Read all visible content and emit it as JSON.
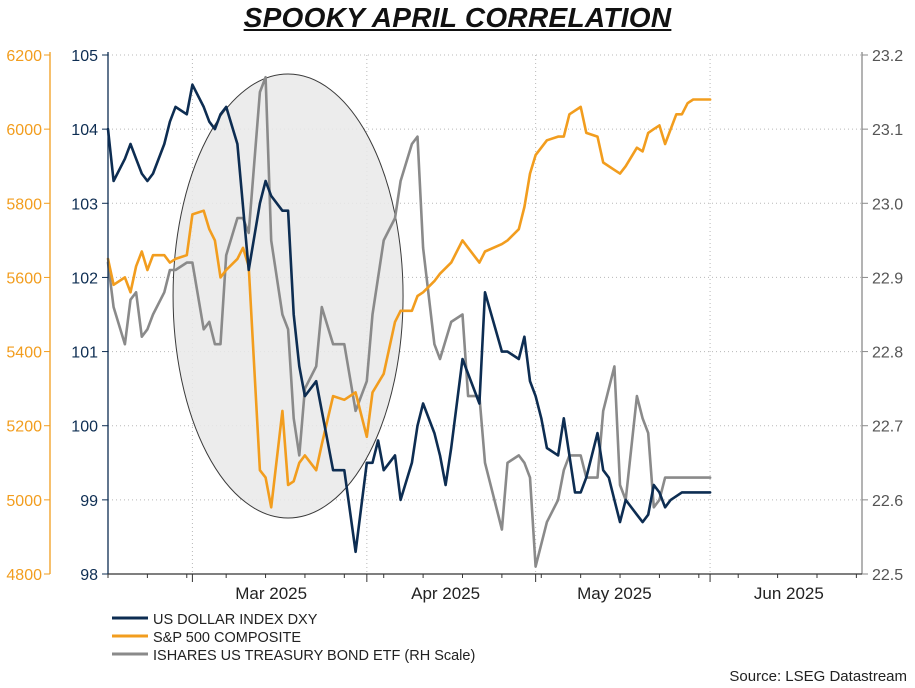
{
  "chart_data": {
    "type": "line",
    "title": "SPOOKY APRIL CORRELATION",
    "source": "Source: LSEG Datastream",
    "grid": true,
    "legend_position": "bottom-left",
    "highlight": "ellipse around April 2025 selloff",
    "colors": {
      "dxy": "#0d2d52",
      "spx": "#f29d1e",
      "etf": "#8a8a8a",
      "left_axis": "#f29d1e",
      "mid_axis": "#0d2d52",
      "right_axis": "#8a8a8a"
    },
    "x_axis": {
      "labels": [
        "Mar 2025",
        "Apr 2025",
        "May 2025",
        "Jun 2025"
      ],
      "range": [
        "2025-02-14",
        "2025-06-28"
      ]
    },
    "axes": {
      "spx": {
        "min": 4800,
        "max": 6200,
        "ticks": [
          4800,
          5000,
          5200,
          5400,
          5600,
          5800,
          6000,
          6200
        ]
      },
      "dxy": {
        "min": 98,
        "max": 105,
        "ticks": [
          98,
          99,
          100,
          101,
          102,
          103,
          104,
          105
        ]
      },
      "etf": {
        "min": 22.5,
        "max": 23.2,
        "ticks": [
          "22.5",
          "22.6",
          "22.7",
          "22.8",
          "22.9",
          "23.0",
          "23.1",
          "23.2"
        ]
      }
    },
    "series": [
      {
        "name": "US DOLLAR INDEX DXY",
        "key": "dxy",
        "dates": [
          "2025-02-14",
          "2025-02-15",
          "2025-02-17",
          "2025-02-18",
          "2025-02-19",
          "2025-02-20",
          "2025-02-21",
          "2025-02-22",
          "2025-02-24",
          "2025-02-25",
          "2025-02-26",
          "2025-02-28",
          "2025-03-01",
          "2025-03-03",
          "2025-03-04",
          "2025-03-05",
          "2025-03-06",
          "2025-03-07",
          "2025-03-09",
          "2025-03-11",
          "2025-03-13",
          "2025-03-14",
          "2025-03-15",
          "2025-03-17",
          "2025-03-18",
          "2025-03-19",
          "2025-03-20",
          "2025-03-21",
          "2025-03-23",
          "2025-03-24",
          "2025-03-26",
          "2025-03-28",
          "2025-03-30",
          "2025-04-01",
          "2025-04-02",
          "2025-04-03",
          "2025-04-04",
          "2025-04-06",
          "2025-04-07",
          "2025-04-09",
          "2025-04-10",
          "2025-04-11",
          "2025-04-13",
          "2025-04-14",
          "2025-04-15",
          "2025-04-16",
          "2025-04-18",
          "2025-04-21",
          "2025-04-22",
          "2025-04-25",
          "2025-04-26",
          "2025-04-28",
          "2025-04-29",
          "2025-04-30",
          "2025-05-01",
          "2025-05-02",
          "2025-05-03",
          "2025-05-05",
          "2025-05-06",
          "2025-05-08",
          "2025-05-09",
          "2025-05-10",
          "2025-05-12",
          "2025-05-13",
          "2025-05-14",
          "2025-05-15",
          "2025-05-16",
          "2025-05-17",
          "2025-05-19",
          "2025-05-20",
          "2025-05-21",
          "2025-05-22",
          "2025-05-23",
          "2025-05-24",
          "2025-05-25",
          "2025-05-27",
          "2025-05-28",
          "2025-05-29",
          "2025-05-30",
          "2025-05-31",
          "2025-06-01"
        ],
        "values": [
          104.0,
          103.3,
          103.6,
          103.8,
          103.6,
          103.4,
          103.3,
          103.4,
          103.8,
          104.1,
          104.3,
          104.2,
          104.6,
          104.3,
          104.1,
          104.0,
          104.2,
          104.3,
          103.8,
          102.1,
          103.0,
          103.3,
          103.1,
          102.9,
          102.9,
          101.5,
          100.8,
          100.4,
          100.6,
          100.2,
          99.4,
          99.4,
          98.3,
          99.5,
          99.5,
          99.8,
          99.4,
          99.6,
          99.0,
          99.5,
          100.0,
          100.3,
          99.9,
          99.6,
          99.2,
          99.7,
          100.9,
          100.3,
          101.8,
          101.0,
          101.0,
          100.9,
          101.2,
          100.6,
          100.4,
          100.1,
          99.7,
          99.6,
          100.1,
          99.1,
          99.1,
          99.3,
          99.9,
          99.4,
          99.3,
          99.0,
          98.7,
          99.0,
          98.8,
          98.7,
          98.8,
          99.2,
          99.1,
          98.9,
          99.0,
          99.1,
          99.1,
          99.1,
          99.1,
          99.1,
          99.1
        ]
      },
      {
        "name": "S&P 500 COMPOSITE",
        "key": "spx",
        "dates": [
          "2025-02-14",
          "2025-02-15",
          "2025-02-17",
          "2025-02-18",
          "2025-02-19",
          "2025-02-20",
          "2025-02-21",
          "2025-02-22",
          "2025-02-24",
          "2025-02-25",
          "2025-02-26",
          "2025-02-28",
          "2025-03-01",
          "2025-03-03",
          "2025-03-04",
          "2025-03-05",
          "2025-03-06",
          "2025-03-07",
          "2025-03-09",
          "2025-03-10",
          "2025-03-11",
          "2025-03-13",
          "2025-03-14",
          "2025-03-15",
          "2025-03-17",
          "2025-03-18",
          "2025-03-19",
          "2025-03-20",
          "2025-03-21",
          "2025-03-23",
          "2025-03-24",
          "2025-03-26",
          "2025-03-28",
          "2025-03-30",
          "2025-04-01",
          "2025-04-02",
          "2025-04-04",
          "2025-04-06",
          "2025-04-07",
          "2025-04-09",
          "2025-04-10",
          "2025-04-11",
          "2025-04-13",
          "2025-04-14",
          "2025-04-16",
          "2025-04-18",
          "2025-04-19",
          "2025-04-21",
          "2025-04-22",
          "2025-04-25",
          "2025-04-26",
          "2025-04-28",
          "2025-04-29",
          "2025-04-30",
          "2025-05-01",
          "2025-05-03",
          "2025-05-05",
          "2025-05-06",
          "2025-05-07",
          "2025-05-09",
          "2025-05-10",
          "2025-05-12",
          "2025-05-13",
          "2025-05-15",
          "2025-05-16",
          "2025-05-17",
          "2025-05-19",
          "2025-05-20",
          "2025-05-21",
          "2025-05-22",
          "2025-05-23",
          "2025-05-24",
          "2025-05-26",
          "2025-05-27",
          "2025-05-28",
          "2025-05-29",
          "2025-05-30",
          "2025-06-01"
        ],
        "values": [
          5650,
          5580,
          5600,
          5560,
          5630,
          5670,
          5620,
          5660,
          5660,
          5640,
          5650,
          5660,
          5770,
          5780,
          5730,
          5700,
          5600,
          5620,
          5650,
          5680,
          5630,
          5080,
          5060,
          4980,
          5240,
          5040,
          5050,
          5100,
          5120,
          5080,
          5150,
          5280,
          5270,
          5290,
          5170,
          5290,
          5340,
          5480,
          5510,
          5510,
          5550,
          5560,
          5590,
          5610,
          5640,
          5700,
          5680,
          5640,
          5670,
          5690,
          5700,
          5730,
          5790,
          5880,
          5930,
          5970,
          5980,
          5980,
          6040,
          6060,
          5990,
          5980,
          5910,
          5890,
          5880,
          5900,
          5950,
          5940,
          5990,
          6000,
          6010,
          5960,
          6040,
          6040,
          6070,
          6080,
          6080,
          6080
        ]
      },
      {
        "name": "ISHARES US TREASURY BOND ETF (RH Scale)",
        "key": "etf",
        "dates": [
          "2025-02-14",
          "2025-02-15",
          "2025-02-17",
          "2025-02-18",
          "2025-02-19",
          "2025-02-20",
          "2025-02-21",
          "2025-02-22",
          "2025-02-24",
          "2025-02-25",
          "2025-02-26",
          "2025-02-28",
          "2025-03-01",
          "2025-03-03",
          "2025-03-04",
          "2025-03-05",
          "2025-03-06",
          "2025-03-07",
          "2025-03-09",
          "2025-03-10",
          "2025-03-11",
          "2025-03-13",
          "2025-03-14",
          "2025-03-15",
          "2025-03-17",
          "2025-03-18",
          "2025-03-19",
          "2025-03-20",
          "2025-03-21",
          "2025-03-23",
          "2025-03-24",
          "2025-03-26",
          "2025-03-28",
          "2025-03-30",
          "2025-04-01",
          "2025-04-02",
          "2025-04-04",
          "2025-04-06",
          "2025-04-07",
          "2025-04-09",
          "2025-04-10",
          "2025-04-11",
          "2025-04-13",
          "2025-04-14",
          "2025-04-16",
          "2025-04-18",
          "2025-04-19",
          "2025-04-21",
          "2025-04-22",
          "2025-04-25",
          "2025-04-26",
          "2025-04-28",
          "2025-04-29",
          "2025-04-30",
          "2025-05-01",
          "2025-05-03",
          "2025-05-05",
          "2025-05-06",
          "2025-05-07",
          "2025-05-09",
          "2025-05-10",
          "2025-05-12",
          "2025-05-13",
          "2025-05-15",
          "2025-05-16",
          "2025-05-17",
          "2025-05-19",
          "2025-05-20",
          "2025-05-21",
          "2025-05-22",
          "2025-05-23",
          "2025-05-24",
          "2025-05-26",
          "2025-05-27",
          "2025-05-28",
          "2025-05-29",
          "2025-05-30",
          "2025-06-01"
        ],
        "values": [
          22.92,
          22.86,
          22.81,
          22.87,
          22.88,
          22.82,
          22.83,
          22.85,
          22.88,
          22.91,
          22.91,
          22.92,
          22.92,
          22.83,
          22.84,
          22.81,
          22.81,
          22.93,
          22.98,
          22.98,
          22.96,
          23.15,
          23.17,
          22.95,
          22.85,
          22.83,
          22.71,
          22.66,
          22.75,
          22.78,
          22.86,
          22.81,
          22.81,
          22.72,
          22.76,
          22.85,
          22.95,
          22.98,
          23.03,
          23.08,
          23.09,
          22.94,
          22.81,
          22.79,
          22.84,
          22.85,
          22.74,
          22.74,
          22.65,
          22.56,
          22.65,
          22.66,
          22.65,
          22.63,
          22.51,
          22.57,
          22.6,
          22.64,
          22.66,
          22.66,
          22.63,
          22.63,
          22.72,
          22.78,
          22.62,
          22.6,
          22.74,
          22.71,
          22.69,
          22.59,
          22.6,
          22.63,
          22.63,
          22.63,
          22.63,
          22.63,
          22.63,
          22.63
        ]
      }
    ]
  }
}
